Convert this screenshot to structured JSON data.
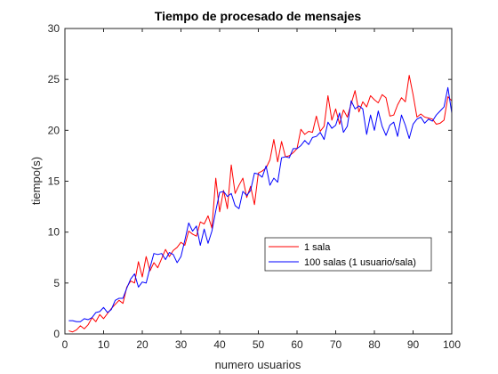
{
  "chart_data": {
    "type": "line",
    "title": "Tiempo de procesado de mensajes",
    "xlabel": "numero usuarios",
    "ylabel": "tiempo(s)",
    "xlim": [
      0,
      100
    ],
    "ylim": [
      0,
      30
    ],
    "xticks": [
      0,
      10,
      20,
      30,
      40,
      50,
      60,
      70,
      80,
      90,
      100
    ],
    "yticks": [
      0,
      5,
      10,
      15,
      20,
      25,
      30
    ],
    "grid": false,
    "legend_position": "lower-right-center",
    "x": [
      1,
      2,
      3,
      4,
      5,
      6,
      7,
      8,
      9,
      10,
      11,
      12,
      13,
      14,
      15,
      16,
      17,
      18,
      19,
      20,
      21,
      22,
      23,
      24,
      25,
      26,
      27,
      28,
      29,
      30,
      31,
      32,
      33,
      34,
      35,
      36,
      37,
      38,
      39,
      40,
      41,
      42,
      43,
      44,
      45,
      46,
      47,
      48,
      49,
      50,
      51,
      52,
      53,
      54,
      55,
      56,
      57,
      58,
      59,
      60,
      61,
      62,
      63,
      64,
      65,
      66,
      67,
      68,
      69,
      70,
      71,
      72,
      73,
      74,
      75,
      76,
      77,
      78,
      79,
      80,
      81,
      82,
      83,
      84,
      85,
      86,
      87,
      88,
      89,
      90,
      91,
      92,
      93,
      94,
      95,
      96,
      97,
      98,
      99,
      100
    ],
    "series": [
      {
        "name": "1 sala",
        "color": "#ff0000",
        "values": [
          0.3,
          0.2,
          0.4,
          0.8,
          0.5,
          0.9,
          1.6,
          1.2,
          1.9,
          1.5,
          2.0,
          2.5,
          2.9,
          3.3,
          3.0,
          4.6,
          5.2,
          5.0,
          7.1,
          5.6,
          7.6,
          6.2,
          7.0,
          6.5,
          7.4,
          8.3,
          7.6,
          8.2,
          8.5,
          9.0,
          8.7,
          10.1,
          9.8,
          9.6,
          11.0,
          10.8,
          11.6,
          10.4,
          15.3,
          12.0,
          14.1,
          12.3,
          16.6,
          13.8,
          14.6,
          15.3,
          13.4,
          14.5,
          12.7,
          15.8,
          16.0,
          16.3,
          17.1,
          19.1,
          16.9,
          18.9,
          17.4,
          17.5,
          17.8,
          18.2,
          20.1,
          19.6,
          19.9,
          19.8,
          21.4,
          19.9,
          20.4,
          23.4,
          21.0,
          22.1,
          20.6,
          22.0,
          21.3,
          22.6,
          23.9,
          21.8,
          22.8,
          22.3,
          23.4,
          23.0,
          22.7,
          23.5,
          23.2,
          21.4,
          21.5,
          22.5,
          23.2,
          22.8,
          25.4,
          23.5,
          21.3,
          21.6,
          21.3,
          21.2,
          21.1,
          20.6,
          20.7,
          21.0,
          23.3,
          22.9
        ]
      },
      {
        "name": "100 salas (1 usuario/sala)",
        "color": "#0000ff",
        "values": [
          1.3,
          1.3,
          1.2,
          1.2,
          1.5,
          1.4,
          1.6,
          2.1,
          2.2,
          2.6,
          2.1,
          2.4,
          3.3,
          3.5,
          3.5,
          4.5,
          5.4,
          5.9,
          4.6,
          5.1,
          5.0,
          6.5,
          7.9,
          7.8,
          7.9,
          7.3,
          8.0,
          7.8,
          7.0,
          7.6,
          9.2,
          10.9,
          10.1,
          10.6,
          8.7,
          10.3,
          8.9,
          10.1,
          12.1,
          13.9,
          14.0,
          13.5,
          13.8,
          12.6,
          12.3,
          14.0,
          13.6,
          14.1,
          15.8,
          15.7,
          15.4,
          16.5,
          14.6,
          15.3,
          14.9,
          17.3,
          17.4,
          17.3,
          18.2,
          18.2,
          18.5,
          19.0,
          18.6,
          19.3,
          19.4,
          19.8,
          19.1,
          20.8,
          20.2,
          20.5,
          21.7,
          19.8,
          20.4,
          22.9,
          22.1,
          22.4,
          22.1,
          19.6,
          21.5,
          20.0,
          21.9,
          20.4,
          19.5,
          20.5,
          20.8,
          19.4,
          21.5,
          20.5,
          19.2,
          20.6,
          21.1,
          21.3,
          20.7,
          21.1,
          20.9,
          21.5,
          21.9,
          22.3,
          24.2,
          21.7
        ]
      }
    ]
  }
}
